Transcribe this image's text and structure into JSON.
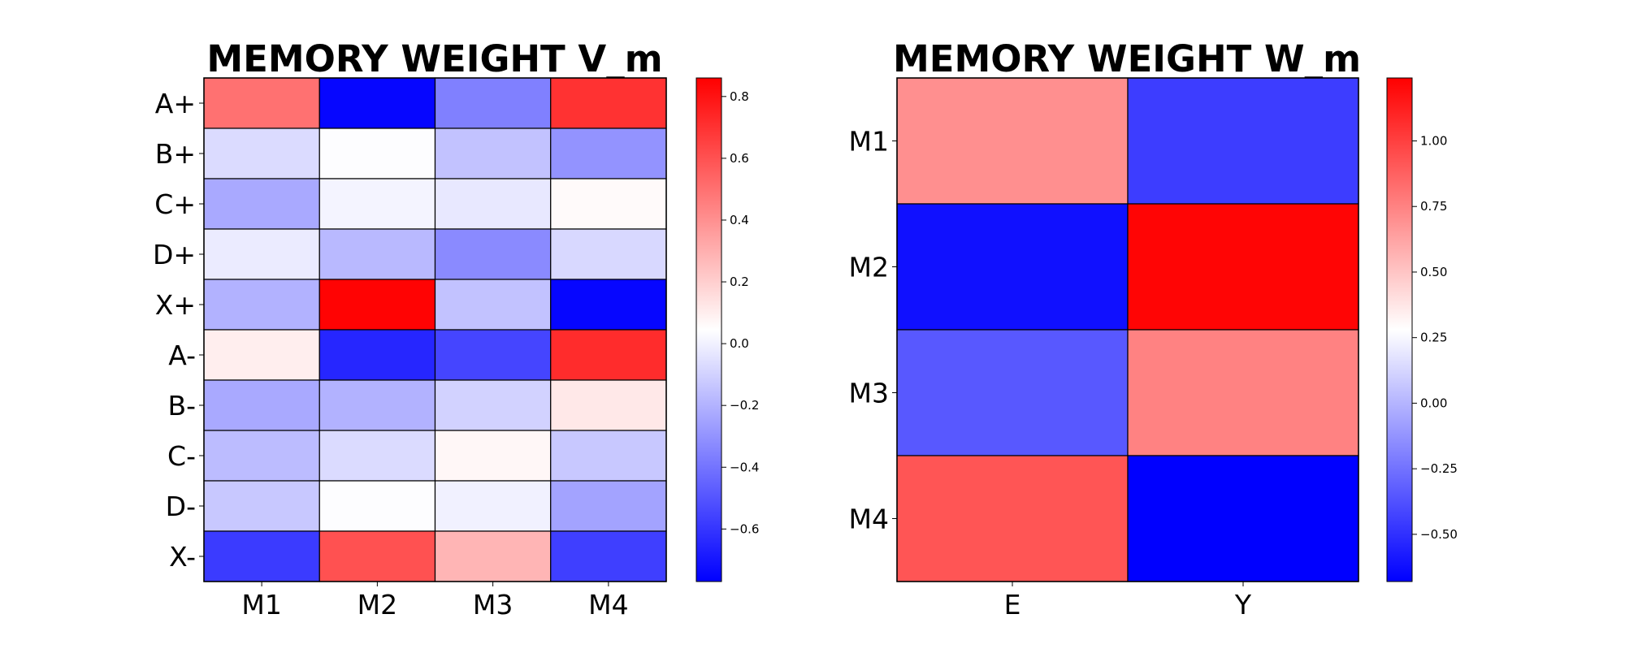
{
  "chart_data": [
    {
      "type": "heatmap",
      "title": "MEMORY WEIGHT V_m",
      "xlabel": "",
      "ylabel": "",
      "x_categories": [
        "M1",
        "M2",
        "M3",
        "M4"
      ],
      "y_categories": [
        "A+",
        "B+",
        "C+",
        "D+",
        "X+",
        "A-",
        "B-",
        "C-",
        "D-",
        "X-"
      ],
      "values": [
        [
          0.5,
          -0.75,
          -0.36,
          0.7
        ],
        [
          -0.07,
          0.04,
          -0.15,
          -0.3
        ],
        [
          -0.23,
          0.01,
          -0.03,
          0.06
        ],
        [
          -0.02,
          -0.18,
          -0.33,
          -0.08
        ],
        [
          -0.2,
          0.85,
          -0.15,
          -0.75
        ],
        [
          0.1,
          -0.65,
          -0.55,
          0.72
        ],
        [
          -0.23,
          -0.2,
          -0.1,
          0.12
        ],
        [
          -0.17,
          -0.07,
          0.07,
          -0.13
        ],
        [
          -0.13,
          0.04,
          0.0,
          -0.25
        ],
        [
          -0.58,
          0.6,
          0.28,
          -0.57
        ]
      ],
      "colormap": "bwr",
      "colorbar": {
        "vmin": -0.77,
        "vmax": 0.86,
        "ticks": [
          "0.8",
          "0.6",
          "0.4",
          "0.2",
          "0.0",
          "−0.2",
          "−0.4",
          "−0.6"
        ]
      }
    },
    {
      "type": "heatmap",
      "title": "MEMORY WEIGHT W_m",
      "xlabel": "",
      "ylabel": "",
      "x_categories": [
        "E",
        "Y"
      ],
      "y_categories": [
        "M1",
        "M2",
        "M3",
        "M4"
      ],
      "values": [
        [
          0.7,
          -0.45
        ],
        [
          -0.62,
          1.22
        ],
        [
          -0.35,
          0.75
        ],
        [
          0.92,
          -0.68
        ]
      ],
      "colormap": "bwr",
      "colorbar": {
        "vmin": -0.68,
        "vmax": 1.24,
        "ticks": [
          "1.00",
          "0.75",
          "0.50",
          "0.25",
          "0.00",
          "−0.25",
          "−0.50"
        ]
      }
    }
  ]
}
